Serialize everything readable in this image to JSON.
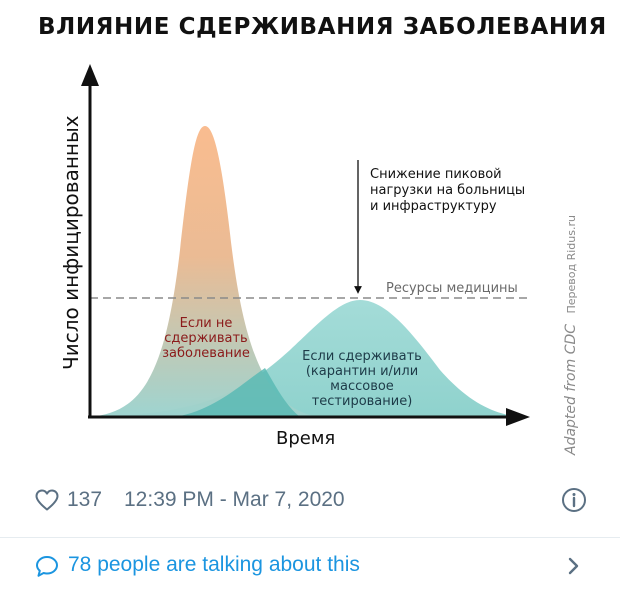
{
  "figure": {
    "title": "ВЛИЯНИЕ СДЕРЖИВАНИЯ ЗАБОЛЕВАНИЯ",
    "y_axis_label": "Число инфицированных",
    "x_axis_label": "Время",
    "annotation_lines": [
      "Снижение пиковой",
      "нагрузки на больницы",
      "и инфраструктуру"
    ],
    "threshold_label": "Ресурсы медицины",
    "curve_uncontained_lines": [
      "Если не",
      "сдерживать",
      "заболевание"
    ],
    "curve_contained_lines": [
      "Если сдерживать",
      "(карантин и/или",
      "массовое",
      "тестирование)"
    ],
    "credit_text": "Adapted from CDC",
    "credit_translation": "Перевод Ridus.ru",
    "colors": {
      "uncontained_top": "#f9ba8c",
      "uncontained_bottom": "#9bd3cf",
      "contained": "#9fdad6",
      "overlap": "#5bbab4",
      "uncontained_label": "#8b1a1a",
      "contained_label": "#1d3b48",
      "threshold_line": "#8a8a8a"
    }
  },
  "chart_data": {
    "type": "area",
    "title": "ВЛИЯНИЕ СДЕРЖИВАНИЯ ЗАБОЛЕВАНИЯ",
    "xlabel": "Время",
    "ylabel": "Число инфицированных",
    "x": [
      0,
      10,
      20,
      30,
      40,
      50,
      60,
      70,
      80,
      90,
      100
    ],
    "ylim": [
      0,
      100
    ],
    "series": [
      {
        "name": "Если не сдерживать заболевание",
        "values": [
          1,
          6,
          35,
          100,
          40,
          8,
          1,
          0,
          0,
          0,
          0
        ]
      },
      {
        "name": "Если сдерживать (карантин и/или массовое тестирование)",
        "values": [
          0,
          1,
          3,
          8,
          17,
          30,
          43,
          40,
          26,
          10,
          2
        ]
      }
    ],
    "threshold": {
      "label": "Ресурсы медицины",
      "value": 43
    },
    "grid": false
  },
  "tweet": {
    "like_icon": "heart-icon",
    "like_count": "137",
    "timestamp": "12:39 PM - Mar 7, 2020",
    "info_icon": "info-icon",
    "talk_icon": "speech-bubble-icon",
    "talk_text": "78 people are talking about this",
    "chevron_icon": "chevron-right-icon",
    "colors": {
      "secondary": "#5b7083",
      "link": "#1b95e0",
      "divider": "#e6ecf0"
    }
  }
}
